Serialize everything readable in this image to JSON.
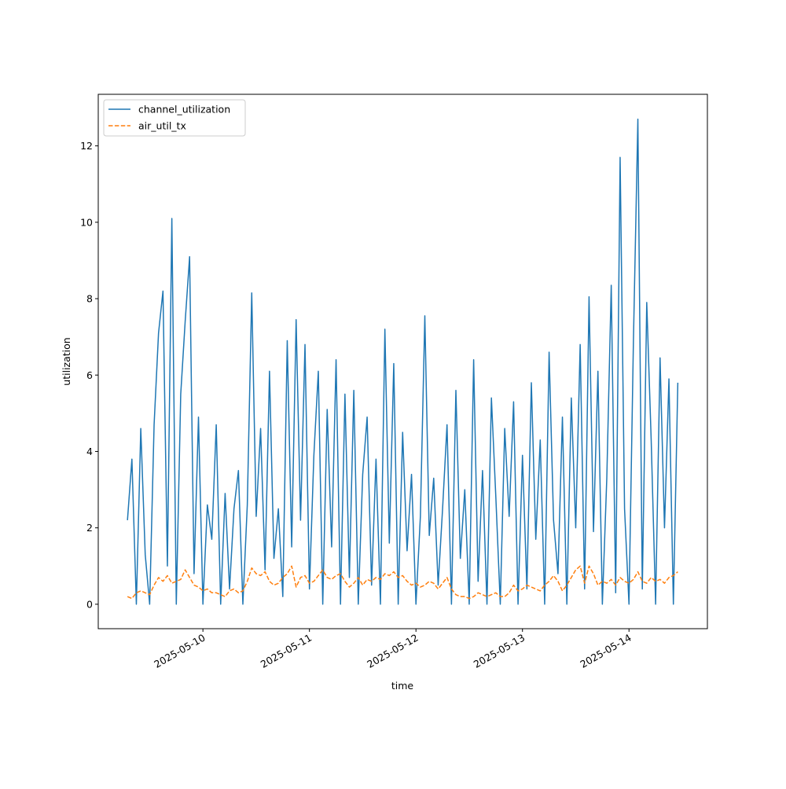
{
  "chart_data": {
    "type": "line",
    "xlabel": "time",
    "ylabel": "utilization",
    "x": [
      "2025-05-09 07:00",
      "2025-05-09 08:00",
      "2025-05-09 09:00",
      "2025-05-09 10:00",
      "2025-05-09 11:00",
      "2025-05-09 12:00",
      "2025-05-09 13:00",
      "2025-05-09 14:00",
      "2025-05-09 15:00",
      "2025-05-09 16:00",
      "2025-05-09 17:00",
      "2025-05-09 18:00",
      "2025-05-09 19:00",
      "2025-05-09 20:00",
      "2025-05-09 21:00",
      "2025-05-09 22:00",
      "2025-05-09 23:00",
      "2025-05-10 00:00",
      "2025-05-10 01:00",
      "2025-05-10 02:00",
      "2025-05-10 03:00",
      "2025-05-10 04:00",
      "2025-05-10 05:00",
      "2025-05-10 06:00",
      "2025-05-10 07:00",
      "2025-05-10 08:00",
      "2025-05-10 09:00",
      "2025-05-10 10:00",
      "2025-05-10 11:00",
      "2025-05-10 12:00",
      "2025-05-10 13:00",
      "2025-05-10 14:00",
      "2025-05-10 15:00",
      "2025-05-10 16:00",
      "2025-05-10 17:00",
      "2025-05-10 18:00",
      "2025-05-10 19:00",
      "2025-05-10 20:00",
      "2025-05-10 21:00",
      "2025-05-10 22:00",
      "2025-05-10 23:00",
      "2025-05-11 00:00",
      "2025-05-11 01:00",
      "2025-05-11 02:00",
      "2025-05-11 03:00",
      "2025-05-11 04:00",
      "2025-05-11 05:00",
      "2025-05-11 06:00",
      "2025-05-11 07:00",
      "2025-05-11 08:00",
      "2025-05-11 09:00",
      "2025-05-11 10:00",
      "2025-05-11 11:00",
      "2025-05-11 12:00",
      "2025-05-11 13:00",
      "2025-05-11 14:00",
      "2025-05-11 15:00",
      "2025-05-11 16:00",
      "2025-05-11 17:00",
      "2025-05-11 18:00",
      "2025-05-11 19:00",
      "2025-05-11 20:00",
      "2025-05-11 21:00",
      "2025-05-11 22:00",
      "2025-05-11 23:00",
      "2025-05-12 00:00",
      "2025-05-12 01:00",
      "2025-05-12 02:00",
      "2025-05-12 03:00",
      "2025-05-12 04:00",
      "2025-05-12 05:00",
      "2025-05-12 06:00",
      "2025-05-12 07:00",
      "2025-05-12 08:00",
      "2025-05-12 09:00",
      "2025-05-12 10:00",
      "2025-05-12 11:00",
      "2025-05-12 12:00",
      "2025-05-12 13:00",
      "2025-05-12 14:00",
      "2025-05-12 15:00",
      "2025-05-12 16:00",
      "2025-05-12 17:00",
      "2025-05-12 18:00",
      "2025-05-12 19:00",
      "2025-05-12 20:00",
      "2025-05-12 21:00",
      "2025-05-12 22:00",
      "2025-05-12 23:00",
      "2025-05-13 00:00",
      "2025-05-13 01:00",
      "2025-05-13 02:00",
      "2025-05-13 03:00",
      "2025-05-13 04:00",
      "2025-05-13 05:00",
      "2025-05-13 06:00",
      "2025-05-13 07:00",
      "2025-05-13 08:00",
      "2025-05-13 09:00",
      "2025-05-13 10:00",
      "2025-05-13 11:00",
      "2025-05-13 12:00",
      "2025-05-13 13:00",
      "2025-05-13 14:00",
      "2025-05-13 15:00",
      "2025-05-13 16:00",
      "2025-05-13 17:00",
      "2025-05-13 18:00",
      "2025-05-13 19:00",
      "2025-05-13 20:00",
      "2025-05-13 21:00",
      "2025-05-13 22:00",
      "2025-05-13 23:00",
      "2025-05-14 00:00",
      "2025-05-14 01:00",
      "2025-05-14 02:00",
      "2025-05-14 03:00",
      "2025-05-14 04:00",
      "2025-05-14 05:00",
      "2025-05-14 06:00",
      "2025-05-14 07:00",
      "2025-05-14 08:00",
      "2025-05-14 09:00",
      "2025-05-14 10:00",
      "2025-05-14 11:00"
    ],
    "series": [
      {
        "name": "channel_utilization",
        "color": "#1f77b4",
        "dash": false,
        "values": [
          2.2,
          3.8,
          0,
          4.6,
          1.3,
          0,
          4.7,
          7.1,
          8.2,
          1.0,
          10.1,
          0,
          5.5,
          7.4,
          9.1,
          0.8,
          4.9,
          0,
          2.6,
          1.7,
          4.7,
          0,
          2.9,
          0.4,
          2.5,
          3.5,
          0,
          2.6,
          8.15,
          2.3,
          4.6,
          0.9,
          6.1,
          1.2,
          2.5,
          0.2,
          6.9,
          1.5,
          7.45,
          2.2,
          6.8,
          0.4,
          3.9,
          6.1,
          0,
          5.1,
          1.5,
          6.4,
          0,
          5.5,
          0.7,
          5.6,
          0,
          3.4,
          4.9,
          0.5,
          3.8,
          0,
          7.2,
          1.6,
          6.3,
          0,
          4.5,
          1.4,
          3.4,
          0,
          2.3,
          7.55,
          1.8,
          3.3,
          0.5,
          2.5,
          4.7,
          0,
          5.6,
          1.2,
          3.0,
          0,
          6.4,
          0.6,
          3.5,
          0,
          5.4,
          2.8,
          0,
          4.6,
          2.3,
          5.3,
          0,
          3.9,
          0.4,
          5.8,
          1.7,
          4.3,
          0,
          6.6,
          2.2,
          0.8,
          4.9,
          0,
          5.4,
          2.0,
          6.8,
          0.4,
          8.05,
          1.9,
          6.1,
          0,
          3.3,
          8.35,
          0.3,
          11.7,
          2.5,
          0,
          6.9,
          12.7,
          0.4,
          7.9,
          4.3,
          0,
          6.45,
          2.0,
          5.9,
          0,
          5.8
        ]
      },
      {
        "name": "air_util_tx",
        "color": "#ff7f0e",
        "dash": true,
        "values": [
          0.2,
          0.15,
          0.3,
          0.35,
          0.3,
          0.25,
          0.5,
          0.7,
          0.6,
          0.75,
          0.55,
          0.6,
          0.65,
          0.9,
          0.7,
          0.5,
          0.45,
          0.35,
          0.4,
          0.3,
          0.3,
          0.25,
          0.2,
          0.35,
          0.4,
          0.3,
          0.35,
          0.6,
          0.95,
          0.8,
          0.75,
          0.85,
          0.6,
          0.5,
          0.55,
          0.7,
          0.8,
          1.0,
          0.45,
          0.7,
          0.75,
          0.55,
          0.6,
          0.75,
          0.9,
          0.7,
          0.65,
          0.75,
          0.8,
          0.6,
          0.45,
          0.55,
          0.7,
          0.5,
          0.65,
          0.6,
          0.7,
          0.65,
          0.8,
          0.75,
          0.85,
          0.7,
          0.75,
          0.6,
          0.5,
          0.55,
          0.45,
          0.5,
          0.6,
          0.55,
          0.4,
          0.55,
          0.7,
          0.4,
          0.25,
          0.2,
          0.2,
          0.15,
          0.2,
          0.3,
          0.25,
          0.2,
          0.25,
          0.3,
          0.2,
          0.2,
          0.3,
          0.5,
          0.35,
          0.4,
          0.5,
          0.45,
          0.4,
          0.35,
          0.5,
          0.6,
          0.75,
          0.6,
          0.35,
          0.5,
          0.7,
          0.9,
          1.0,
          0.55,
          1.0,
          0.8,
          0.5,
          0.6,
          0.55,
          0.65,
          0.5,
          0.7,
          0.6,
          0.55,
          0.65,
          0.85,
          0.6,
          0.55,
          0.7,
          0.6,
          0.65,
          0.55,
          0.7,
          0.75,
          0.85
        ]
      }
    ],
    "xlim": [
      "2025-05-09 00:25",
      "2025-05-14 17:40"
    ],
    "xticks": [
      "2025-05-10",
      "2025-05-11",
      "2025-05-12",
      "2025-05-13",
      "2025-05-14"
    ],
    "ylim": [
      -0.64,
      13.35
    ],
    "yticks": [
      0,
      2,
      4,
      6,
      8,
      10,
      12
    ],
    "grid": false,
    "legend": "upper left"
  }
}
